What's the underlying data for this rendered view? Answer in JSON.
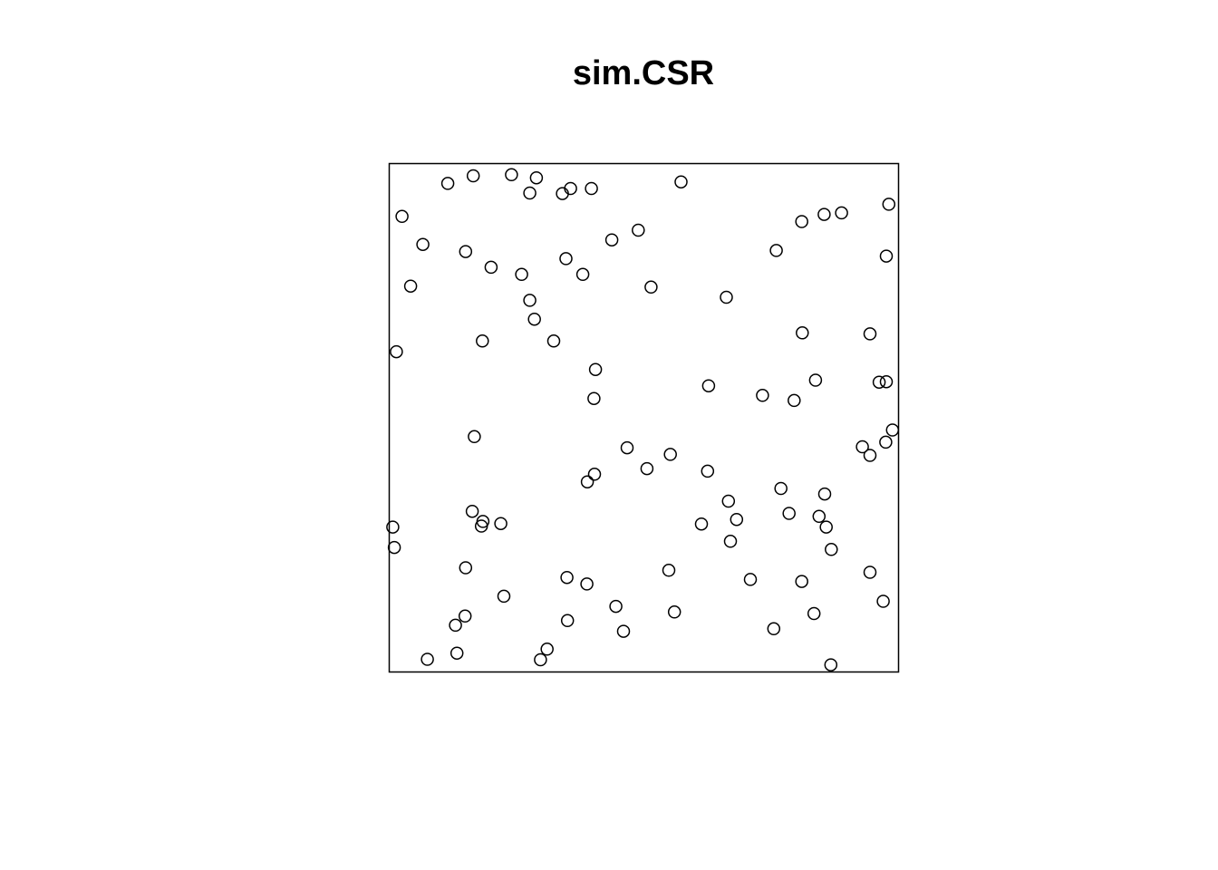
{
  "chart_data": {
    "type": "scatter",
    "title": "sim.CSR",
    "xlabel": "",
    "ylabel": "",
    "xlim": [
      0,
      1
    ],
    "ylim": [
      0,
      1
    ],
    "grid": false,
    "axes_shown": false,
    "marker": "open-circle",
    "colors": {
      "marker": "#000000",
      "frame": "#000000"
    },
    "points": [
      {
        "x": 0.115,
        "y": 0.961
      },
      {
        "x": 0.165,
        "y": 0.976
      },
      {
        "x": 0.24,
        "y": 0.978
      },
      {
        "x": 0.289,
        "y": 0.972
      },
      {
        "x": 0.276,
        "y": 0.942
      },
      {
        "x": 0.34,
        "y": 0.941
      },
      {
        "x": 0.356,
        "y": 0.951
      },
      {
        "x": 0.397,
        "y": 0.951
      },
      {
        "x": 0.573,
        "y": 0.964
      },
      {
        "x": 0.025,
        "y": 0.896
      },
      {
        "x": 0.981,
        "y": 0.92
      },
      {
        "x": 0.066,
        "y": 0.841
      },
      {
        "x": 0.15,
        "y": 0.827
      },
      {
        "x": 0.2,
        "y": 0.796
      },
      {
        "x": 0.26,
        "y": 0.782
      },
      {
        "x": 0.347,
        "y": 0.813
      },
      {
        "x": 0.38,
        "y": 0.782
      },
      {
        "x": 0.437,
        "y": 0.85
      },
      {
        "x": 0.489,
        "y": 0.869
      },
      {
        "x": 0.81,
        "y": 0.886
      },
      {
        "x": 0.854,
        "y": 0.9
      },
      {
        "x": 0.888,
        "y": 0.903
      },
      {
        "x": 0.76,
        "y": 0.829
      },
      {
        "x": 0.976,
        "y": 0.818
      },
      {
        "x": 0.042,
        "y": 0.759
      },
      {
        "x": 0.276,
        "y": 0.731
      },
      {
        "x": 0.285,
        "y": 0.694
      },
      {
        "x": 0.514,
        "y": 0.757
      },
      {
        "x": 0.662,
        "y": 0.737
      },
      {
        "x": 0.014,
        "y": 0.63
      },
      {
        "x": 0.183,
        "y": 0.651
      },
      {
        "x": 0.323,
        "y": 0.651
      },
      {
        "x": 0.811,
        "y": 0.667
      },
      {
        "x": 0.944,
        "y": 0.665
      },
      {
        "x": 0.405,
        "y": 0.595
      },
      {
        "x": 0.402,
        "y": 0.538
      },
      {
        "x": 0.627,
        "y": 0.563
      },
      {
        "x": 0.733,
        "y": 0.544
      },
      {
        "x": 0.795,
        "y": 0.534
      },
      {
        "x": 0.837,
        "y": 0.574
      },
      {
        "x": 0.962,
        "y": 0.57
      },
      {
        "x": 0.976,
        "y": 0.571
      },
      {
        "x": 0.167,
        "y": 0.463
      },
      {
        "x": 0.467,
        "y": 0.441
      },
      {
        "x": 0.552,
        "y": 0.428
      },
      {
        "x": 0.506,
        "y": 0.4
      },
      {
        "x": 0.625,
        "y": 0.395
      },
      {
        "x": 0.403,
        "y": 0.389
      },
      {
        "x": 0.389,
        "y": 0.374
      },
      {
        "x": 0.929,
        "y": 0.443
      },
      {
        "x": 0.944,
        "y": 0.426
      },
      {
        "x": 0.975,
        "y": 0.452
      },
      {
        "x": 0.988,
        "y": 0.476
      },
      {
        "x": 0.007,
        "y": 0.285
      },
      {
        "x": 0.01,
        "y": 0.245
      },
      {
        "x": 0.163,
        "y": 0.316
      },
      {
        "x": 0.184,
        "y": 0.296
      },
      {
        "x": 0.181,
        "y": 0.287
      },
      {
        "x": 0.219,
        "y": 0.292
      },
      {
        "x": 0.666,
        "y": 0.336
      },
      {
        "x": 0.682,
        "y": 0.3
      },
      {
        "x": 0.613,
        "y": 0.291
      },
      {
        "x": 0.67,
        "y": 0.257
      },
      {
        "x": 0.769,
        "y": 0.361
      },
      {
        "x": 0.785,
        "y": 0.312
      },
      {
        "x": 0.855,
        "y": 0.35
      },
      {
        "x": 0.844,
        "y": 0.306
      },
      {
        "x": 0.858,
        "y": 0.285
      },
      {
        "x": 0.868,
        "y": 0.241
      },
      {
        "x": 0.15,
        "y": 0.205
      },
      {
        "x": 0.349,
        "y": 0.186
      },
      {
        "x": 0.388,
        "y": 0.173
      },
      {
        "x": 0.549,
        "y": 0.2
      },
      {
        "x": 0.709,
        "y": 0.182
      },
      {
        "x": 0.81,
        "y": 0.178
      },
      {
        "x": 0.944,
        "y": 0.196
      },
      {
        "x": 0.225,
        "y": 0.149
      },
      {
        "x": 0.445,
        "y": 0.129
      },
      {
        "x": 0.56,
        "y": 0.118
      },
      {
        "x": 0.834,
        "y": 0.115
      },
      {
        "x": 0.97,
        "y": 0.139
      },
      {
        "x": 0.149,
        "y": 0.11
      },
      {
        "x": 0.13,
        "y": 0.092
      },
      {
        "x": 0.35,
        "y": 0.101
      },
      {
        "x": 0.46,
        "y": 0.08
      },
      {
        "x": 0.755,
        "y": 0.085
      },
      {
        "x": 0.075,
        "y": 0.025
      },
      {
        "x": 0.133,
        "y": 0.037
      },
      {
        "x": 0.31,
        "y": 0.045
      },
      {
        "x": 0.297,
        "y": 0.024
      },
      {
        "x": 0.867,
        "y": 0.014
      }
    ]
  }
}
